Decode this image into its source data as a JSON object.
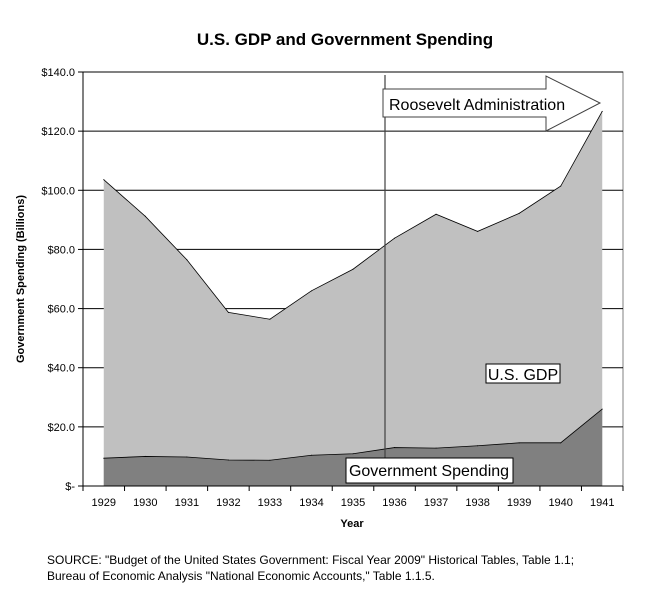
{
  "chart_data": {
    "type": "area",
    "title": "U.S. GDP and Government Spending",
    "xlabel": "Year",
    "ylabel": "Government Spending (Billions)",
    "categories": [
      "1929",
      "1930",
      "1931",
      "1932",
      "1933",
      "1934",
      "1935",
      "1936",
      "1937",
      "1938",
      "1939",
      "1940",
      "1941"
    ],
    "ylim": [
      0,
      140
    ],
    "yticks": [
      0,
      20,
      40,
      60,
      80,
      100,
      120,
      140
    ],
    "ytick_labels": [
      "$-",
      "$20.0",
      "$40.0",
      "$60.0",
      "$80.0",
      "$100.0",
      "$120.0",
      "$140.0"
    ],
    "grid": true,
    "series": [
      {
        "name": "U.S. GDP",
        "color": "#c0c0c0",
        "values": [
          103.6,
          91.2,
          76.5,
          58.7,
          56.4,
          66.0,
          73.3,
          83.8,
          91.9,
          86.1,
          92.2,
          101.4,
          126.7
        ]
      },
      {
        "name": "Government Spending",
        "color": "#808080",
        "values": [
          9.4,
          10.0,
          9.8,
          8.8,
          8.7,
          10.4,
          10.9,
          13.0,
          12.8,
          13.6,
          14.6,
          14.6,
          26.0
        ]
      }
    ],
    "annotations": {
      "arrow_label": "Roosevelt Administration",
      "gdp_label": "U.S. GDP",
      "spending_label": "Government Spending"
    },
    "source": [
      "SOURCE: \"Budget of the United States Government: Fiscal Year 2009\" Historical Tables, Table 1.1;",
      "Bureau of Economic Analysis \"National Economic Accounts,\" Table 1.1.5."
    ]
  }
}
